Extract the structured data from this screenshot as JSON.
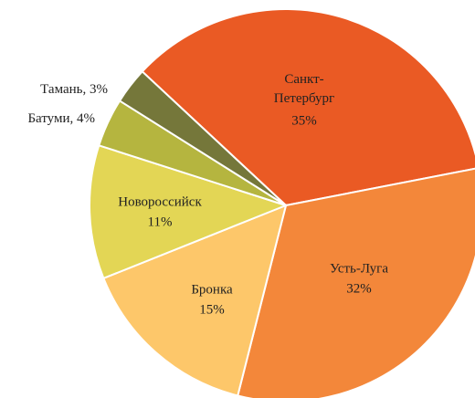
{
  "chart_data": {
    "type": "pie",
    "categories": [
      "Санкт-Петербург",
      "Усть-Луга",
      "Бронка",
      "Новороссийск",
      "Батуми",
      "Тамань"
    ],
    "values": [
      35,
      32,
      15,
      11,
      4,
      3
    ],
    "value_labels": [
      "35%",
      "32%",
      "15%",
      "11%",
      ", 4%",
      ", 3%"
    ],
    "colors": [
      "#ea5a24",
      "#f3873a",
      "#fdc76a",
      "#e3d655",
      "#b5b53f",
      "#75773a"
    ]
  }
}
